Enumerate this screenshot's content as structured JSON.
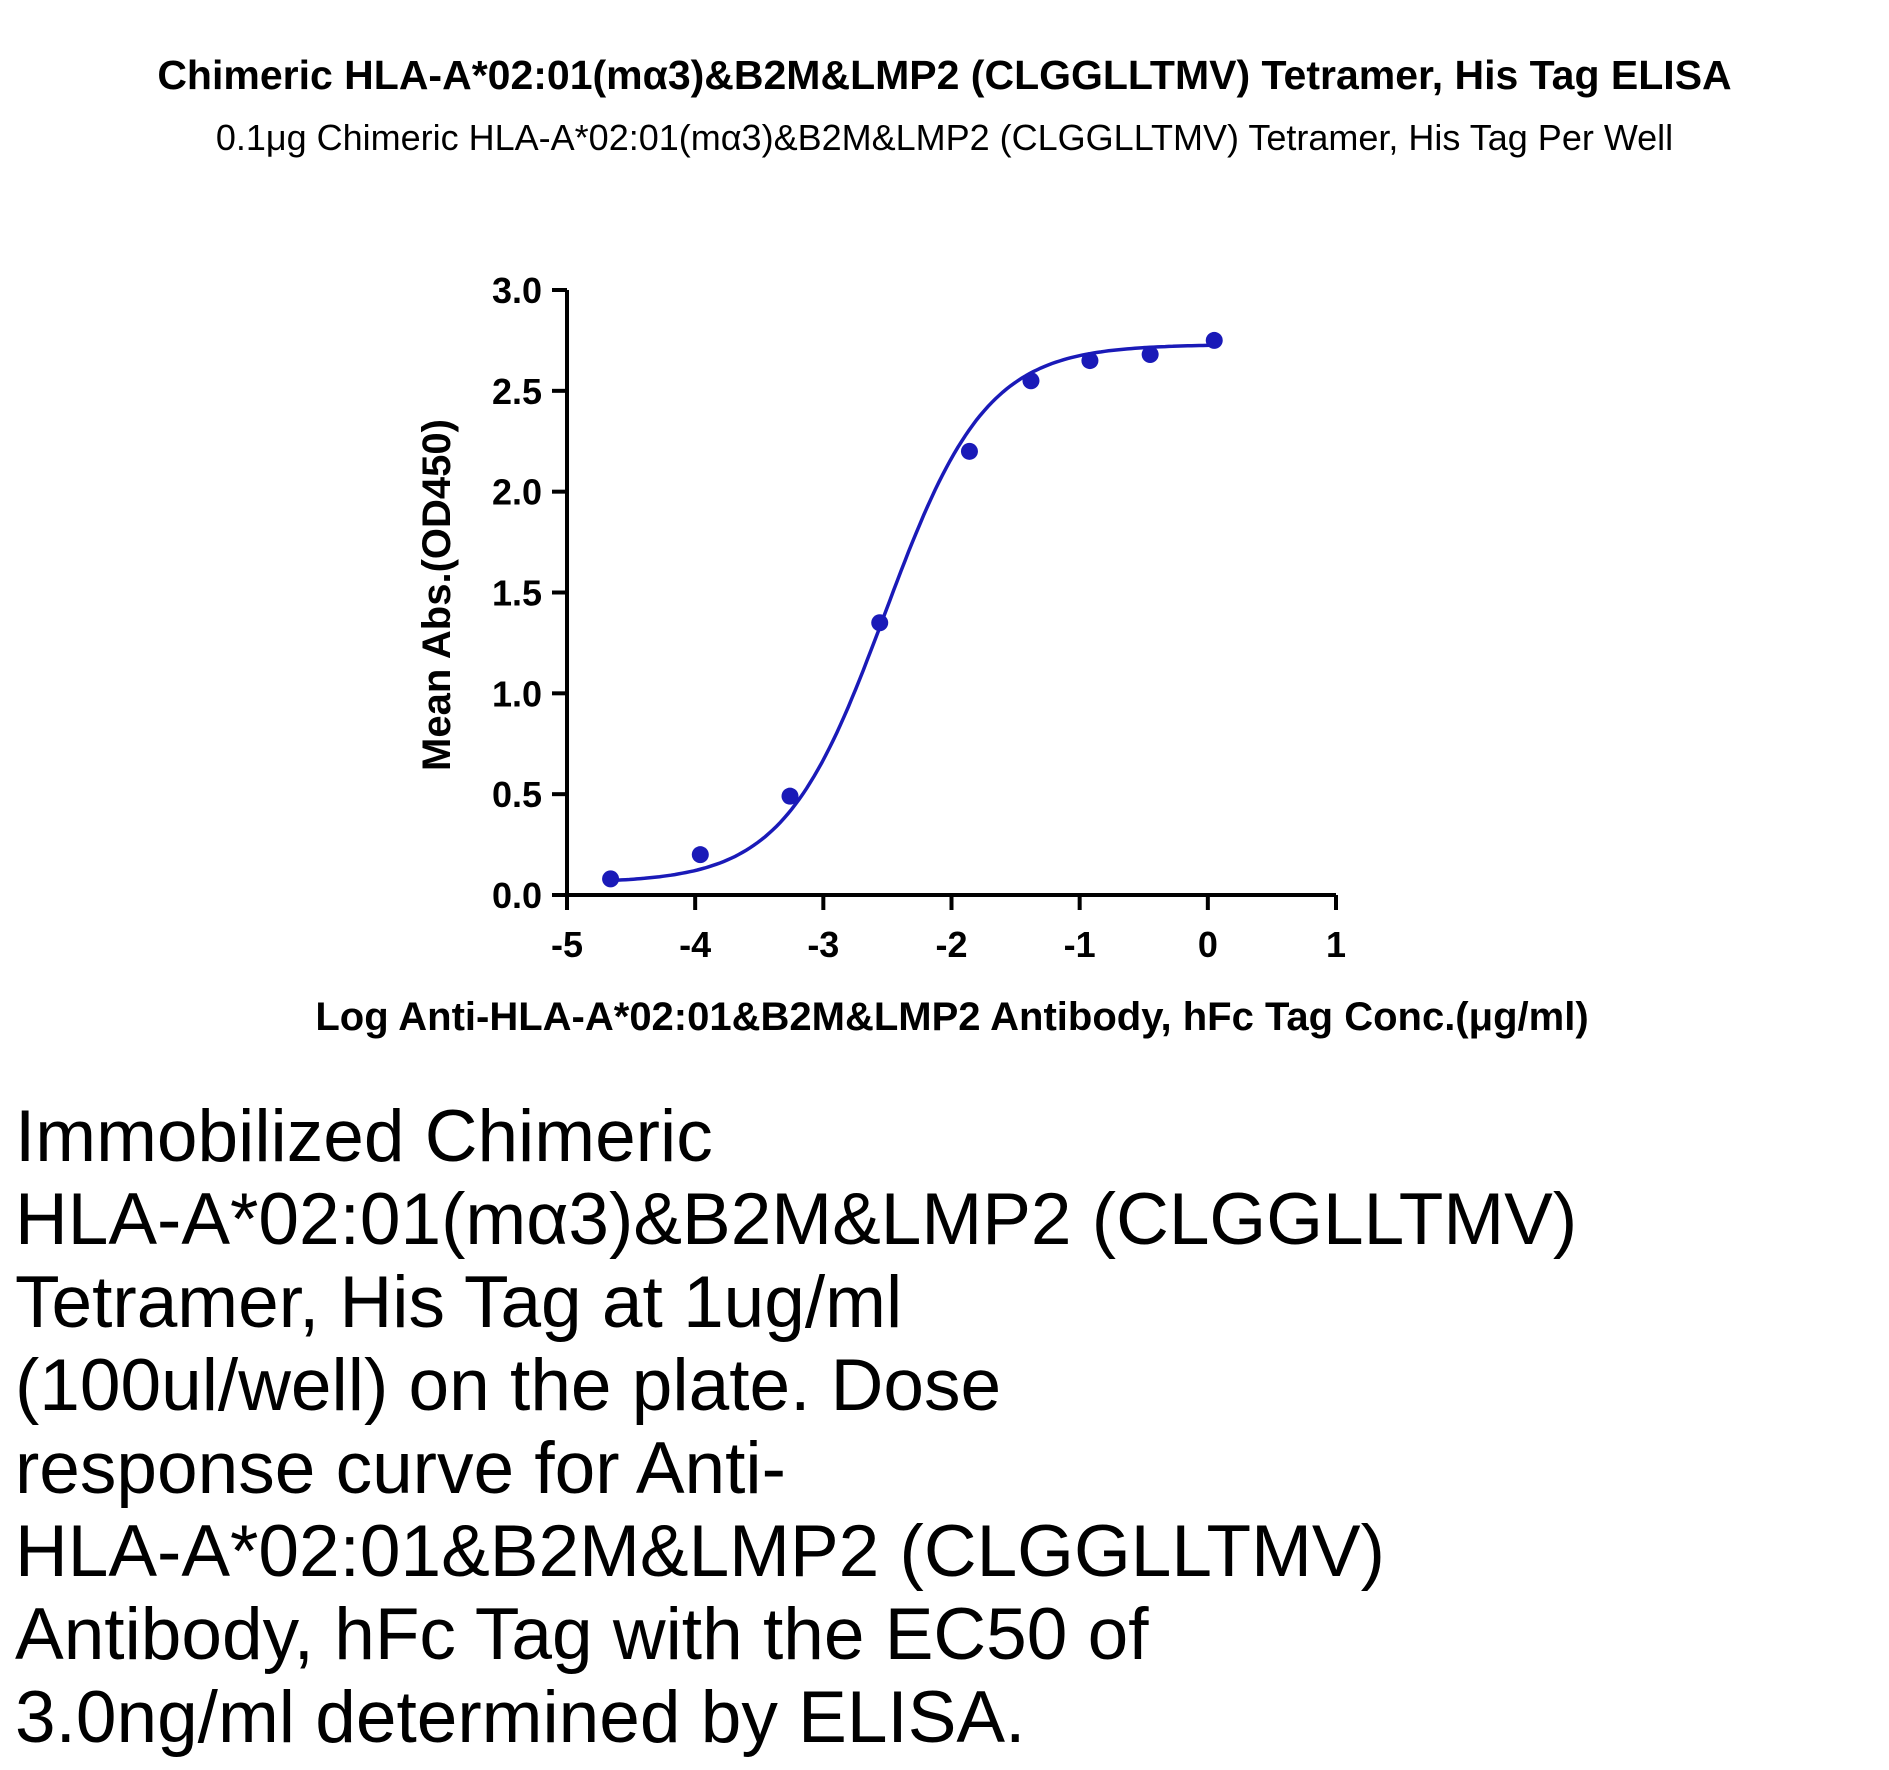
{
  "title": "Chimeric HLA-A*02:01(mα3)&B2M&LMP2 (CLGGLLTMV) Tetramer, His Tag ELISA",
  "subtitle": "0.1μg Chimeric HLA-A*02:01(mα3)&B2M&LMP2 (CLGGLLTMV) Tetramer, His Tag Per Well",
  "caption": "Immobilized Chimeric\nHLA-A*02:01(mα3)&B2M&LMP2 (CLGGLLTMV)\nTetramer, His Tag at 1ug/ml\n(100ul/well) on the plate. Dose\nresponse curve for Anti-\nHLA-A*02:01&B2M&LMP2 (CLGGLLTMV)\nAntibody, hFc Tag with the EC50 of\n3.0ng/ml determined by ELISA.",
  "colors": {
    "series": "#1a1ab8",
    "axis": "#000000"
  },
  "chart_data": {
    "type": "scatter",
    "title": "Chimeric HLA-A*02:01(mα3)&B2M&LMP2 (CLGGLLTMV) Tetramer, His Tag ELISA",
    "subtitle": "0.1μg Chimeric HLA-A*02:01(mα3)&B2M&LMP2 (CLGGLLTMV) Tetramer, His Tag Per Well",
    "xlabel": "Log Anti-HLA-A*02:01&B2M&LMP2 Antibody, hFc Tag Conc.(μg/ml)",
    "ylabel": "Mean Abs.(OD450)",
    "xlim": [
      -5,
      1
    ],
    "ylim": [
      0,
      3
    ],
    "xticks": [
      "-5",
      "-4",
      "-3",
      "-2",
      "-1",
      "0",
      "1"
    ],
    "yticks": [
      "0.0",
      "0.5",
      "1.0",
      "1.5",
      "2.0",
      "2.5",
      "3.0"
    ],
    "grid": false,
    "x": [
      -4.66,
      -3.96,
      -3.26,
      -2.56,
      -1.86,
      -1.38,
      -0.92,
      -0.45,
      0.05
    ],
    "y": [
      0.08,
      0.2,
      0.49,
      1.35,
      2.2,
      2.55,
      2.65,
      2.68,
      2.75
    ],
    "fit": {
      "model": "4PL",
      "bottom": 0.06,
      "top": 2.73,
      "log_ec50": -2.52,
      "hill": 1.1
    }
  }
}
